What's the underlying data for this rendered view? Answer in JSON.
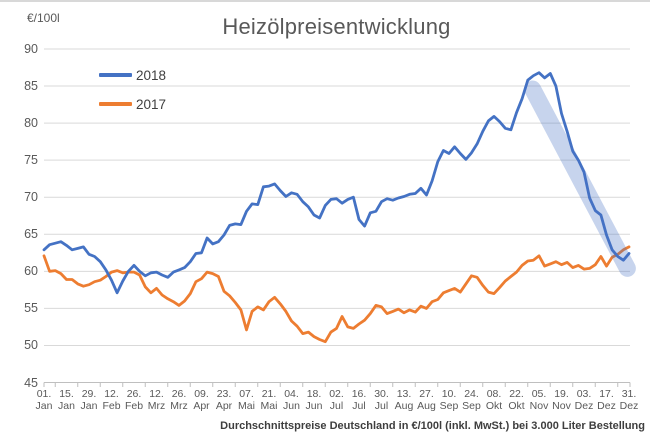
{
  "header": {
    "title": "Heizölpreisentwicklung",
    "unit_label": "€/100l"
  },
  "legend": [
    {
      "label": "2018",
      "color": "#4472C4"
    },
    {
      "label": "2017",
      "color": "#ED7D31"
    }
  ],
  "footer": {
    "caption": "Durchschnittspreise Deutschland in €/100l (inkl. MwSt.) bei 3.000 Liter Bestellung"
  },
  "chart_data": {
    "type": "line",
    "title": "Heizölpreisentwicklung",
    "ylabel": "€/100l",
    "xlabel": "",
    "ylim": [
      45,
      90
    ],
    "y_ticks": [
      45,
      50,
      55,
      60,
      65,
      70,
      75,
      80,
      85,
      90
    ],
    "grid": "horizontal",
    "legend_position": "top-left",
    "x_axis_unit": "day-of-year",
    "xlim_days": [
      1,
      365
    ],
    "x_tick_days": [
      1,
      15,
      29,
      43,
      57,
      71,
      85,
      99,
      113,
      127,
      141,
      155,
      169,
      183,
      197,
      211,
      225,
      239,
      253,
      267,
      281,
      295,
      309,
      323,
      337,
      351,
      365
    ],
    "x_tick_labels": [
      {
        "day": "01.",
        "month": "Jan"
      },
      {
        "day": "15.",
        "month": "Jan"
      },
      {
        "day": "29.",
        "month": "Jan"
      },
      {
        "day": "12.",
        "month": "Feb"
      },
      {
        "day": "26.",
        "month": "Feb"
      },
      {
        "day": "12.",
        "month": "Mrz"
      },
      {
        "day": "26.",
        "month": "Mrz"
      },
      {
        "day": "09.",
        "month": "Apr"
      },
      {
        "day": "23.",
        "month": "Apr"
      },
      {
        "day": "07.",
        "month": "Mai"
      },
      {
        "day": "21.",
        "month": "Mai"
      },
      {
        "day": "04.",
        "month": "Jun"
      },
      {
        "day": "18.",
        "month": "Jun"
      },
      {
        "day": "02.",
        "month": "Jul"
      },
      {
        "day": "16.",
        "month": "Jul"
      },
      {
        "day": "30.",
        "month": "Jul"
      },
      {
        "day": "13.",
        "month": "Aug"
      },
      {
        "day": "27.",
        "month": "Aug"
      },
      {
        "day": "10.",
        "month": "Sep"
      },
      {
        "day": "24.",
        "month": "Sep"
      },
      {
        "day": "08.",
        "month": "Okt"
      },
      {
        "day": "22.",
        "month": "Okt"
      },
      {
        "day": "05.",
        "month": "Nov"
      },
      {
        "day": "19.",
        "month": "Nov"
      },
      {
        "day": "03.",
        "month": "Dez"
      },
      {
        "day": "17.",
        "month": "Dez"
      },
      {
        "day": "31.",
        "month": "Dez"
      }
    ],
    "x_start_day": 1,
    "x_step_days": 3.5,
    "series": [
      {
        "name": "2018",
        "color": "#4472C4",
        "values": [
          62.9,
          63.6,
          63.8,
          64.0,
          63.5,
          62.9,
          63.1,
          63.3,
          62.3,
          62.0,
          61.3,
          60.2,
          58.8,
          57.1,
          58.7,
          60.0,
          60.8,
          60.0,
          59.4,
          59.8,
          59.9,
          59.5,
          59.2,
          59.9,
          60.2,
          60.5,
          61.3,
          62.4,
          62.5,
          64.5,
          63.7,
          64.0,
          64.9,
          66.2,
          66.4,
          66.3,
          68.1,
          69.1,
          69.0,
          71.4,
          71.5,
          71.8,
          70.9,
          70.1,
          70.6,
          70.4,
          69.4,
          68.7,
          67.6,
          67.2,
          68.9,
          69.7,
          69.8,
          69.2,
          69.7,
          70.0,
          67.0,
          66.1,
          67.9,
          68.1,
          69.4,
          69.8,
          69.6,
          69.9,
          70.1,
          70.4,
          70.5,
          71.2,
          70.3,
          72.2,
          74.8,
          76.3,
          75.9,
          76.8,
          75.9,
          75.1,
          76.0,
          77.2,
          78.9,
          80.3,
          80.9,
          80.2,
          79.3,
          79.1,
          81.4,
          83.3,
          85.8,
          86.4,
          86.8,
          86.1,
          86.7,
          85.0,
          81.3,
          78.9,
          76.2,
          75.0,
          73.4,
          69.9,
          68.2,
          67.6,
          64.9,
          62.9,
          62.0,
          61.5,
          62.4
        ]
      },
      {
        "name": "2017",
        "color": "#ED7D31",
        "values": [
          62.1,
          60.0,
          60.1,
          59.7,
          58.9,
          58.9,
          58.3,
          58.0,
          58.2,
          58.6,
          58.8,
          59.3,
          59.9,
          60.1,
          59.8,
          59.9,
          59.9,
          59.5,
          57.9,
          57.1,
          57.7,
          56.8,
          56.3,
          55.9,
          55.4,
          56.0,
          57.0,
          58.6,
          59.0,
          59.9,
          59.7,
          59.3,
          57.3,
          56.7,
          55.8,
          54.8,
          52.1,
          54.6,
          55.2,
          54.8,
          55.9,
          56.5,
          55.6,
          54.6,
          53.3,
          52.6,
          51.6,
          51.8,
          51.2,
          50.8,
          50.5,
          51.8,
          52.3,
          53.9,
          52.5,
          52.3,
          52.9,
          53.4,
          54.3,
          55.4,
          55.2,
          54.3,
          54.6,
          54.9,
          54.4,
          54.8,
          54.5,
          55.3,
          55.0,
          55.9,
          56.2,
          57.1,
          57.4,
          57.7,
          57.2,
          58.3,
          59.4,
          59.2,
          58.1,
          57.2,
          57.0,
          57.8,
          58.7,
          59.3,
          59.9,
          60.8,
          61.4,
          61.5,
          62.1,
          60.7,
          61.0,
          61.3,
          60.9,
          61.2,
          60.5,
          60.8,
          60.3,
          60.4,
          60.9,
          62.0,
          60.7,
          61.9,
          62.3,
          62.9,
          63.3
        ]
      }
    ],
    "annotation": {
      "type": "highlight-band",
      "description": "hand-drawn light blue highlight over 2018 price decline Nov-Dez",
      "color": "#4472C4",
      "opacity": 0.3,
      "from_day": 305,
      "from_value": 84.6,
      "to_day": 364,
      "to_value": 60.4
    }
  }
}
